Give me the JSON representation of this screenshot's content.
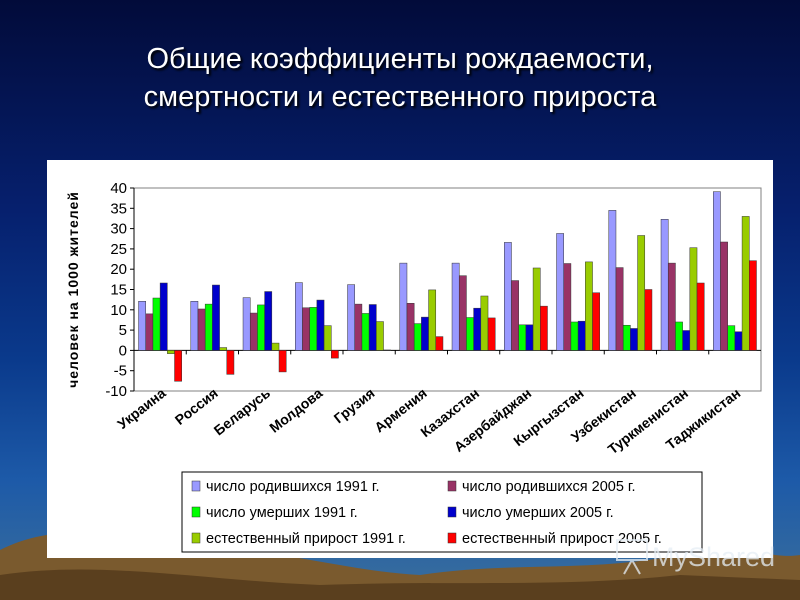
{
  "slide": {
    "title_line1": "Общие коэффициенты рождаемости,",
    "title_line2": "смертности и естественного прироста"
  },
  "chart_data": {
    "type": "bar",
    "ylabel": "человек на 1000 жителей",
    "ylim": [
      -10,
      40
    ],
    "yticks": [
      -10,
      -5,
      0,
      5,
      10,
      15,
      20,
      25,
      30,
      35,
      40
    ],
    "grid": false,
    "legend_placement": "bottom",
    "categories": [
      "Украина",
      "Россия",
      "Беларусь",
      "Молдова",
      "Грузия",
      "Армения",
      "Казахстан",
      "Азербайджан",
      "Кыргызстан",
      "Узбекистан",
      "Туркменистан",
      "Таджикистан"
    ],
    "series": [
      {
        "name": "число родившихся 1991 г.",
        "color": "#9999ff",
        "values": [
          12.1,
          12.1,
          13.0,
          16.7,
          16.2,
          21.5,
          21.5,
          26.6,
          28.8,
          34.5,
          32.3,
          39.1
        ]
      },
      {
        "name": "число родившихся 2005 г.",
        "color": "#993366",
        "values": [
          9.0,
          10.2,
          9.2,
          10.5,
          11.4,
          11.6,
          18.4,
          17.2,
          21.4,
          20.4,
          21.5,
          26.7
        ]
      },
      {
        "name": "число умерших 1991 г.",
        "color": "#00ff00",
        "values": [
          12.9,
          11.4,
          11.2,
          10.6,
          9.1,
          6.6,
          8.1,
          6.3,
          7.0,
          6.2,
          7.0,
          6.1
        ]
      },
      {
        "name": "число умерших 2005 г.",
        "color": "#0000cc",
        "values": [
          16.6,
          16.1,
          14.5,
          12.4,
          11.3,
          8.2,
          10.4,
          6.3,
          7.2,
          5.4,
          4.9,
          4.6
        ]
      },
      {
        "name": "естественный прирост 1991 г.",
        "color": "#99cc00",
        "values": [
          -0.8,
          0.7,
          1.8,
          6.1,
          7.1,
          14.9,
          13.4,
          20.3,
          21.8,
          28.3,
          25.3,
          33.0
        ]
      },
      {
        "name": "естественный прирост 2005 г.",
        "color": "#ff0000",
        "values": [
          -7.6,
          -5.9,
          -5.3,
          -1.9,
          0.1,
          3.4,
          8.0,
          10.9,
          14.2,
          15.0,
          16.6,
          22.1
        ]
      }
    ]
  },
  "watermark": {
    "text": "MyShared"
  }
}
